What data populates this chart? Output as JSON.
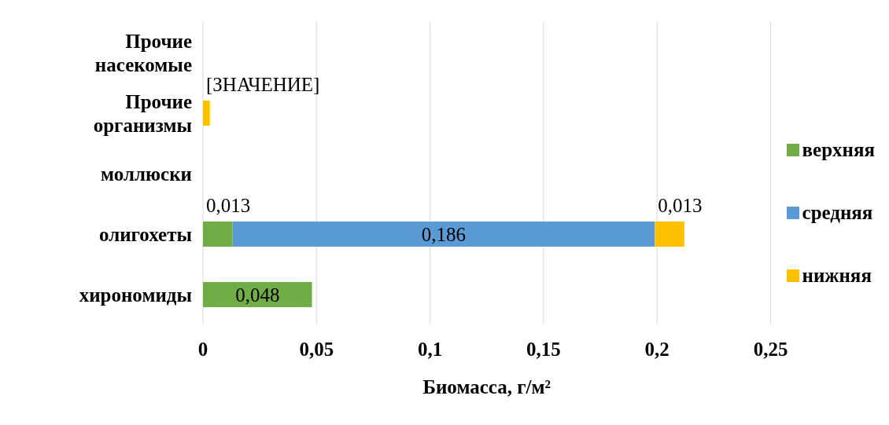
{
  "chart_data": {
    "type": "bar",
    "orientation": "horizontal",
    "stacked": true,
    "xlabel": "Биомасса, г/м²",
    "categories": [
      "Прочие насекомые",
      "Прочие организмы",
      "моллюски",
      "олигохеты",
      "хирономиды"
    ],
    "series": [
      {
        "name": "верхняя",
        "color": "#70ad47",
        "values": [
          0,
          0,
          0,
          0.013,
          0.048
        ],
        "value_labels": [
          null,
          null,
          null,
          "0,013",
          "0,048"
        ]
      },
      {
        "name": "средняя",
        "color": "#5b9bd5",
        "values": [
          0,
          0,
          0,
          0.186,
          0
        ],
        "value_labels": [
          null,
          null,
          null,
          "0,186",
          null
        ]
      },
      {
        "name": "нижняя",
        "color": "#ffc000",
        "values": [
          0,
          0.003,
          0,
          0.013,
          0
        ],
        "value_labels": [
          null,
          "[ЗНАЧЕНИЕ]",
          null,
          "0,013",
          null
        ]
      }
    ],
    "xlim": [
      0,
      0.25
    ],
    "xticks": [
      0,
      {
        "value": 0.05,
        "label": "0,05"
      },
      {
        "value": 0.1,
        "label": "0,1"
      },
      {
        "value": 0.15,
        "label": "0,15"
      },
      {
        "value": 0.2,
        "label": "0,2"
      },
      {
        "value": 0.25,
        "label": "0,25"
      }
    ],
    "grid": "x",
    "legend": "right"
  }
}
